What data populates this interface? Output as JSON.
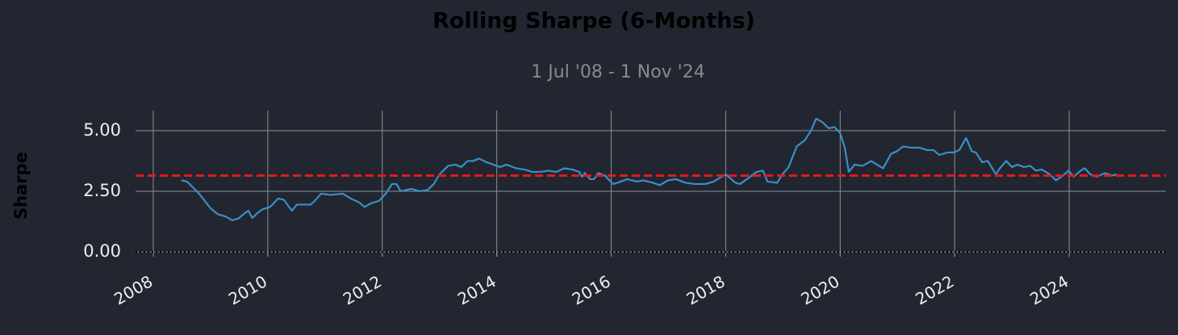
{
  "chart_data": {
    "type": "line",
    "title": "Rolling Sharpe (6-Months)",
    "subtitle": "1 Jul '08 -  1 Nov '24",
    "y_label": "Sharpe",
    "color": "#3b8ec6",
    "x": [
      2008.49,
      2008.59,
      2008.8,
      2009.0,
      2009.13,
      2009.27,
      2009.38,
      2009.49,
      2009.6,
      2009.66,
      2009.73,
      2009.82,
      2009.9,
      2010.04,
      2010.18,
      2010.28,
      2010.42,
      2010.51,
      2010.75,
      2010.82,
      2010.93,
      2011.1,
      2011.31,
      2011.45,
      2011.59,
      2011.69,
      2011.8,
      2011.94,
      2012.06,
      2012.17,
      2012.25,
      2012.32,
      2012.51,
      2012.65,
      2012.79,
      2012.9,
      2013.0,
      2013.15,
      2013.28,
      2013.38,
      2013.49,
      2013.59,
      2013.69,
      2013.82,
      2013.94,
      2014.06,
      2014.17,
      2014.34,
      2014.48,
      2014.62,
      2014.76,
      2014.9,
      2015.04,
      2015.18,
      2015.32,
      2015.44,
      2015.49,
      2015.54,
      2015.63,
      2015.7,
      2015.77,
      2015.89,
      2016.03,
      2016.11,
      2016.28,
      2016.45,
      2016.56,
      2016.73,
      2016.85,
      2016.99,
      2017.13,
      2017.3,
      2017.46,
      2017.65,
      2017.79,
      2018.0,
      2018.17,
      2018.25,
      2018.37,
      2018.54,
      2018.65,
      2018.73,
      2018.9,
      2018.99,
      2019.1,
      2019.24,
      2019.38,
      2019.49,
      2019.58,
      2019.69,
      2019.8,
      2019.9,
      2020.0,
      2020.08,
      2020.15,
      2020.25,
      2020.39,
      2020.54,
      2020.75,
      2020.89,
      2020.99,
      2021.1,
      2021.24,
      2021.38,
      2021.52,
      2021.63,
      2021.73,
      2021.87,
      2021.97,
      2022.08,
      2022.2,
      2022.3,
      2022.37,
      2022.48,
      2022.58,
      2022.72,
      2022.79,
      2022.9,
      2023.0,
      2023.1,
      2023.21,
      2023.32,
      2023.42,
      2023.52,
      2023.66,
      2023.77,
      2023.89,
      2023.99,
      2024.08,
      2024.2,
      2024.27,
      2024.37,
      2024.48,
      2024.62,
      2024.76,
      2024.83
    ],
    "values": [
      2.95,
      2.9,
      2.4,
      1.8,
      1.55,
      1.45,
      1.3,
      1.38,
      1.6,
      1.7,
      1.4,
      1.6,
      1.75,
      1.85,
      2.2,
      2.15,
      1.7,
      1.95,
      1.95,
      2.1,
      2.4,
      2.35,
      2.4,
      2.2,
      2.05,
      1.85,
      2.0,
      2.1,
      2.4,
      2.8,
      2.8,
      2.5,
      2.6,
      2.5,
      2.55,
      2.8,
      3.2,
      3.55,
      3.6,
      3.5,
      3.75,
      3.75,
      3.85,
      3.7,
      3.6,
      3.5,
      3.6,
      3.45,
      3.4,
      3.3,
      3.3,
      3.35,
      3.3,
      3.45,
      3.4,
      3.3,
      3.1,
      3.25,
      3.0,
      3.0,
      3.25,
      3.15,
      2.8,
      2.85,
      3.0,
      2.9,
      2.95,
      2.85,
      2.75,
      2.95,
      3.0,
      2.85,
      2.8,
      2.8,
      2.9,
      3.2,
      2.85,
      2.8,
      3.0,
      3.3,
      3.35,
      2.9,
      2.85,
      3.2,
      3.5,
      4.35,
      4.6,
      5.0,
      5.5,
      5.35,
      5.1,
      5.15,
      4.9,
      4.3,
      3.3,
      3.6,
      3.55,
      3.75,
      3.45,
      4.05,
      4.15,
      4.35,
      4.3,
      4.3,
      4.2,
      4.2,
      4.0,
      4.1,
      4.1,
      4.2,
      4.7,
      4.15,
      4.1,
      3.7,
      3.75,
      3.2,
      3.45,
      3.75,
      3.5,
      3.6,
      3.5,
      3.55,
      3.35,
      3.4,
      3.2,
      2.95,
      3.15,
      3.35,
      3.1,
      3.35,
      3.45,
      3.2,
      3.1,
      3.25,
      3.15,
      3.2
    ],
    "xlim": [
      2007.69,
      2025.69
    ],
    "xticks": [
      2008,
      2010,
      2012,
      2014,
      2016,
      2018,
      2020,
      2022,
      2024
    ],
    "ylim": [
      -0.2,
      5.83
    ],
    "yticks": [
      {
        "value": 0,
        "label": "0.00"
      },
      {
        "value": 2.5,
        "label": "2.50"
      },
      {
        "value": 5,
        "label": "5.00"
      }
    ],
    "grid": true,
    "mean_line": {
      "value": 3.15,
      "color": "#e3191c"
    },
    "zero_line": {
      "value": 0,
      "color": "#000000"
    }
  }
}
